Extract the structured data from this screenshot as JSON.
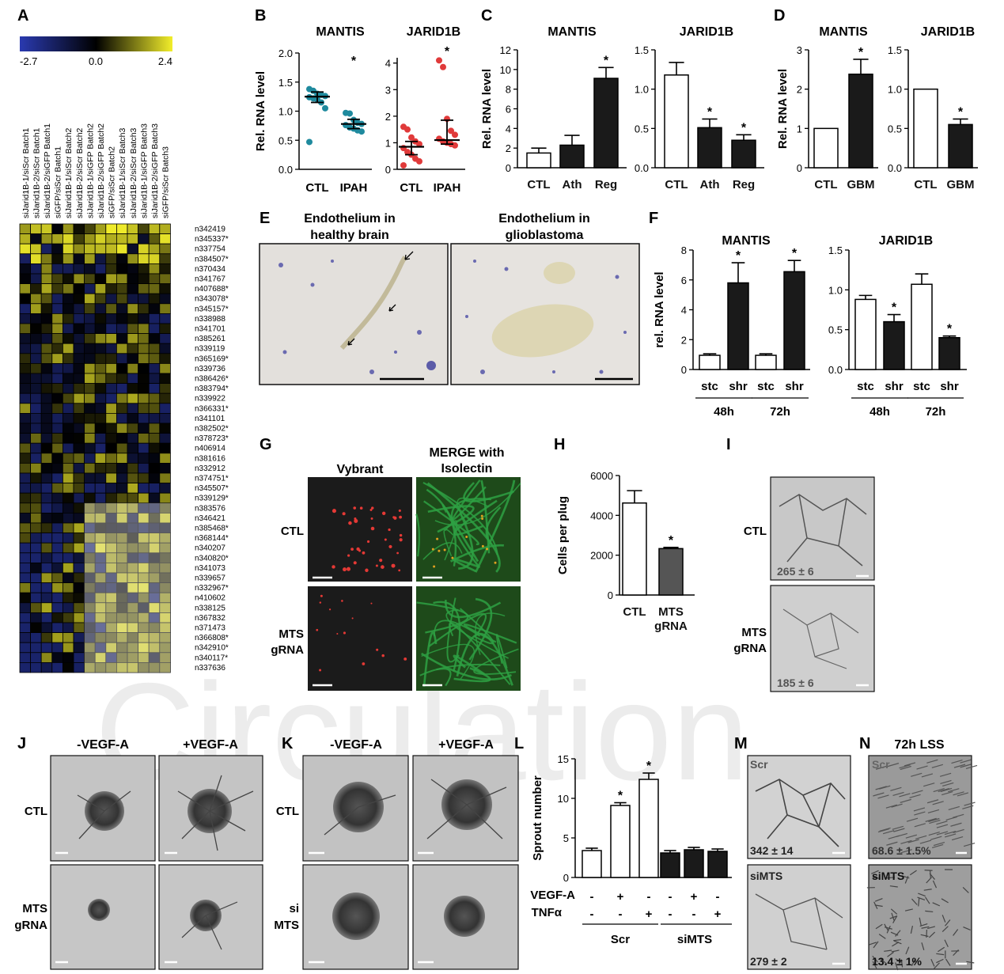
{
  "watermark": "Circulation",
  "colors": {
    "bar_black": "#1a1a1a",
    "bar_white": "#ffffff",
    "bar_grey": "#555555",
    "teal": "#1f8a9e",
    "red": "#e03a3a",
    "heat_low": "#2a3ab0",
    "heat_mid": "#000000",
    "heat_high": "#f2ee2b",
    "vessel_green": "#2ea043",
    "dye_red": "#e53935"
  },
  "panelA": {
    "label": "A",
    "scale_labels": [
      "-2.7",
      "0.0",
      "2.4"
    ],
    "columns": [
      "siJarid1B-1/siScr Batch1",
      "siJarid1B-2/siScr Batch1",
      "siJarid1B-2/siGFP Batch1",
      "siGFP/siScr Batch1",
      "siJarid1B-1/siScr Batch2",
      "siJarid1B-2/siScr Batch2",
      "siJarid1B-1/siGFP Batch2",
      "siJarid1B-2/siGFP Batch2",
      "siGFP/siScr Batch2",
      "siJarid1B-1/siScr Batch3",
      "siJarid1B-2/siScr Batch3",
      "siJarid1B-1/siGFP Batch3",
      "siJarid1B-2/siGFP Batch3",
      "siGFP/siScr Batch3"
    ],
    "genes": [
      "n342419",
      "n345337*",
      "n337754",
      "n384507*",
      "n370434",
      "n341767",
      "n407688*",
      "n343078*",
      "n345157*",
      "n338988",
      "n341701",
      "n385261",
      "n339119",
      "n365169*",
      "n339736",
      "n386426*",
      "n383794*",
      "n339922",
      "n366331*",
      "n341101",
      "n382502*",
      "n378723*",
      "n406914",
      "n381616",
      "n332912",
      "n374751*",
      "n345507*",
      "n339129*",
      "n383576",
      "n346421",
      "n385468*",
      "n368144*",
      "n340207",
      "n340820*",
      "n341073",
      "n339657",
      "n332967*",
      "n410602",
      "n338125",
      "n367832",
      "n371473",
      "n366808*",
      "n342910*",
      "n340117*",
      "n337636"
    ]
  },
  "panelB": {
    "label": "B",
    "mantis": {
      "title": "MANTIS",
      "ylabel": "Rel. RNA level",
      "yticks": [
        "0.0",
        "0.5",
        "1.0",
        "1.5",
        "2.0"
      ],
      "ylim": [
        0,
        2.0
      ],
      "groups": [
        "CTL",
        "IPAH"
      ],
      "medians": [
        1.25,
        0.78
      ],
      "ci_low": [
        1.15,
        0.7
      ],
      "ci_high": [
        1.33,
        0.86
      ],
      "points": [
        [
          1.38,
          1.35,
          1.3,
          1.28,
          1.26,
          1.24,
          1.22,
          1.2,
          1.15,
          1.05,
          0.47
        ],
        [
          0.97,
          0.96,
          0.85,
          0.8,
          0.78,
          0.76,
          0.72,
          0.7,
          0.67,
          0.65
        ]
      ],
      "star": "*"
    },
    "jarid1b": {
      "title": "JARID1B",
      "yticks": [
        "0",
        "1",
        "2",
        "3",
        "4"
      ],
      "ylim": [
        0,
        4.2
      ],
      "groups": [
        "CTL",
        "IPAH"
      ],
      "medians": [
        0.85,
        1.1
      ],
      "ci_low": [
        0.55,
        0.95
      ],
      "ci_high": [
        1.05,
        1.85
      ],
      "points": [
        [
          1.6,
          1.5,
          1.2,
          1.05,
          0.95,
          0.8,
          0.65,
          0.55,
          0.4,
          0.3,
          0.15
        ],
        [
          4.1,
          3.85,
          1.9,
          1.45,
          1.3,
          1.15,
          1.05,
          1.0,
          0.95,
          0.9
        ]
      ],
      "star": "*"
    }
  },
  "panelC": {
    "label": "C",
    "mantis": {
      "title": "MANTIS",
      "ylabel": "Rel. RNA level",
      "yticks": [
        "0",
        "2",
        "4",
        "6",
        "8",
        "10",
        "12"
      ],
      "ylim": [
        0,
        12
      ],
      "groups": [
        "CTL",
        "Ath",
        "Reg"
      ],
      "values": [
        1.5,
        2.3,
        9.1
      ],
      "errors": [
        0.5,
        1.0,
        1.1
      ],
      "fills": [
        "white",
        "black",
        "black"
      ],
      "stars": [
        "",
        "",
        "*"
      ]
    },
    "jarid1b": {
      "title": "JARID1B",
      "yticks": [
        "0.0",
        "0.5",
        "1.0",
        "1.5"
      ],
      "ylim": [
        0,
        1.5
      ],
      "groups": [
        "CTL",
        "Ath",
        "Reg"
      ],
      "values": [
        1.18,
        0.51,
        0.35
      ],
      "errors": [
        0.16,
        0.11,
        0.07
      ],
      "fills": [
        "white",
        "black",
        "black"
      ],
      "stars": [
        "",
        "*",
        "*"
      ]
    }
  },
  "panelD": {
    "label": "D",
    "mantis": {
      "title": "MANTIS",
      "ylabel": "Rel. RNA level",
      "yticks": [
        "0",
        "1",
        "2",
        "3"
      ],
      "ylim": [
        0,
        3
      ],
      "groups": [
        "CTL",
        "GBM"
      ],
      "values": [
        1.0,
        2.38
      ],
      "errors": [
        0,
        0.38
      ],
      "fills": [
        "white",
        "black"
      ],
      "stars": [
        "",
        "*"
      ]
    },
    "jarid1b": {
      "title": "JARID1B",
      "yticks": [
        "0.0",
        "0.5",
        "1.0",
        "1.5"
      ],
      "ylim": [
        0,
        1.5
      ],
      "groups": [
        "CTL",
        "GBM"
      ],
      "values": [
        1.0,
        0.55
      ],
      "errors": [
        0,
        0.07
      ],
      "fills": [
        "white",
        "black"
      ],
      "stars": [
        "",
        "*"
      ]
    }
  },
  "panelE": {
    "label": "E",
    "left_title": [
      "Endothelium in",
      "healthy brain"
    ],
    "right_title": [
      "Endothelium in",
      "glioblastoma"
    ]
  },
  "panelF": {
    "label": "F",
    "mantis": {
      "title": "MANTIS",
      "ylabel": "rel. RNA level",
      "yticks": [
        "0",
        "2",
        "4",
        "6",
        "8"
      ],
      "ylim": [
        0,
        8
      ],
      "groups": [
        "stc",
        "shr",
        "stc",
        "shr"
      ],
      "times": [
        "48h",
        "72h"
      ],
      "values": [
        0.95,
        5.8,
        0.95,
        6.55
      ],
      "errors": [
        0.1,
        1.35,
        0.1,
        0.75
      ],
      "fills": [
        "white",
        "black",
        "white",
        "black"
      ],
      "stars": [
        "",
        "*",
        "",
        "*"
      ]
    },
    "jarid1b": {
      "title": "JARID1B",
      "yticks": [
        "0.0",
        "0.5",
        "1.0",
        "1.5"
      ],
      "ylim": [
        0,
        1.5
      ],
      "groups": [
        "stc",
        "shr",
        "stc",
        "shr"
      ],
      "times": [
        "48h",
        "72h"
      ],
      "values": [
        0.88,
        0.6,
        1.07,
        0.4
      ],
      "errors": [
        0.05,
        0.09,
        0.13,
        0.02
      ],
      "fills": [
        "white",
        "black",
        "white",
        "black"
      ],
      "stars": [
        "",
        "*",
        "",
        "*"
      ]
    }
  },
  "panelG": {
    "label": "G",
    "col1": "Vybrant",
    "col2": [
      "MERGE with",
      "Isolectin"
    ],
    "rows": [
      "CTL",
      [
        "MTS",
        "gRNA"
      ]
    ]
  },
  "panelH": {
    "label": "H",
    "ylabel": "Cells per plug",
    "yticks": [
      "0",
      "2000",
      "4000",
      "6000"
    ],
    "ylim": [
      0,
      6000
    ],
    "groups": [
      "CTL",
      [
        "MTS",
        "gRNA"
      ]
    ],
    "values": [
      4620,
      2330
    ],
    "errors": [
      620,
      60
    ],
    "fills": [
      "white",
      "grey"
    ],
    "stars": [
      "",
      "*"
    ]
  },
  "panelI": {
    "label": "I",
    "rows": [
      "CTL",
      [
        "MTS",
        "gRNA"
      ]
    ],
    "counts": [
      "265 ± 6",
      "185 ± 6"
    ]
  },
  "panelJ": {
    "label": "J",
    "cols": [
      "-VEGF-A",
      "+VEGF-A"
    ],
    "rows": [
      "CTL",
      [
        "MTS",
        "gRNA"
      ]
    ]
  },
  "panelK": {
    "label": "K",
    "cols": [
      "-VEGF-A",
      "+VEGF-A"
    ],
    "rows": [
      "CTL",
      [
        "si",
        "MTS"
      ]
    ]
  },
  "panelL": {
    "label": "L",
    "ylabel": "Sprout number",
    "yticks": [
      "0",
      "5",
      "10",
      "15"
    ],
    "ylim": [
      0,
      15
    ],
    "values": [
      3.4,
      9.1,
      12.4,
      3.1,
      3.5,
      3.3
    ],
    "errors": [
      0.3,
      0.35,
      0.8,
      0.3,
      0.3,
      0.3
    ],
    "fills": [
      "white",
      "white",
      "white",
      "black",
      "black",
      "black"
    ],
    "stars": [
      "",
      "*",
      "*",
      "",
      "",
      ""
    ],
    "row_labels": [
      "VEGF-A",
      "TNFα"
    ],
    "vegf": [
      "-",
      "+",
      "-",
      "-",
      "+",
      "-"
    ],
    "tnf": [
      "-",
      "-",
      "+",
      "-",
      "-",
      "+"
    ],
    "group_labels": [
      "Scr",
      "siMTS"
    ]
  },
  "panelM": {
    "label": "M",
    "tags": [
      "Scr",
      "siMTS"
    ],
    "counts": [
      "342 ± 14",
      "279 ± 2"
    ]
  },
  "panelN": {
    "label": "N",
    "title": "72h LSS",
    "tags": [
      "Scr",
      "siMTS"
    ],
    "counts": [
      "68.6 ± 1.5%",
      "13.4 ± 1%"
    ]
  }
}
